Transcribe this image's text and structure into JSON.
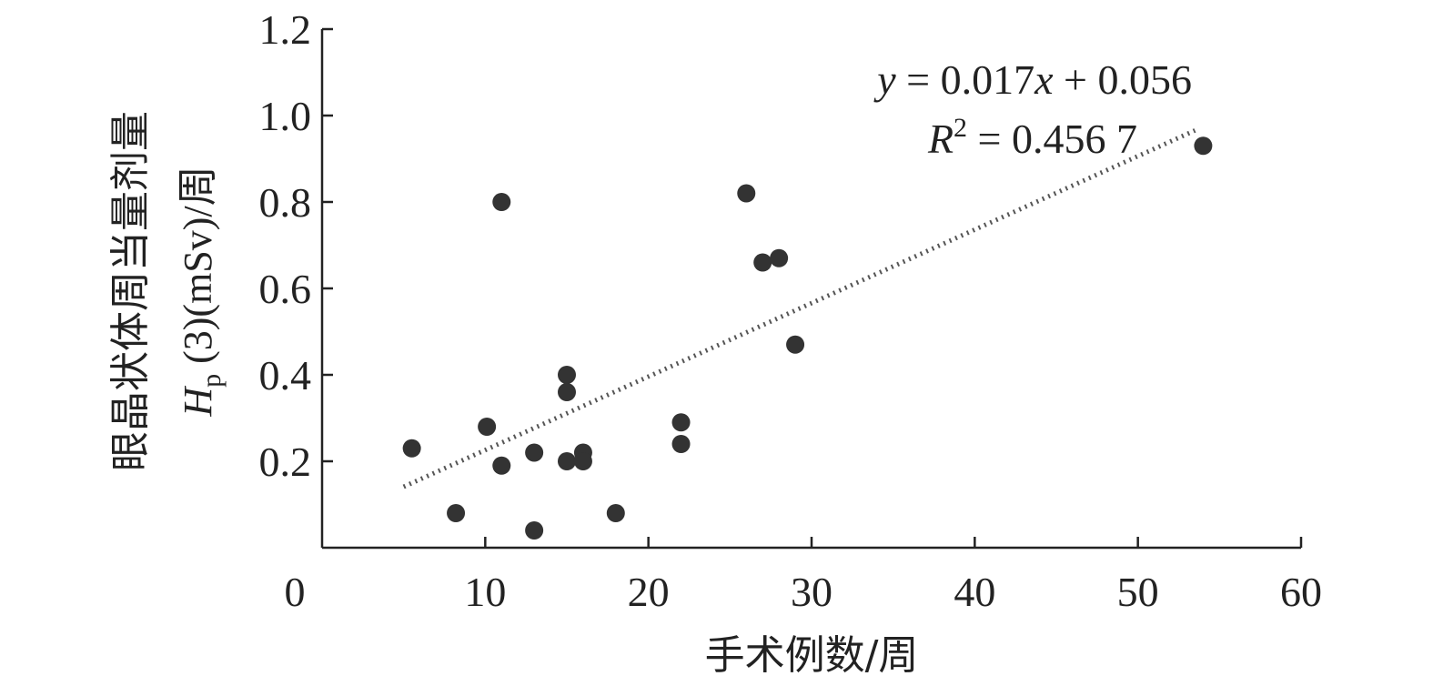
{
  "chart_data": {
    "type": "scatter",
    "xlabel": "手术例数/周",
    "ylabel_line1": "眼晶状体周当量剂量",
    "ylabel_line2": {
      "symbol": "H",
      "subscript": "p",
      "rest": " (3)(mSv)/周"
    },
    "xlim": [
      0,
      60
    ],
    "ylim": [
      0,
      1.2
    ],
    "x_ticks": [
      {
        "value": 0,
        "label": "0"
      },
      {
        "value": 10,
        "label": "10"
      },
      {
        "value": 20,
        "label": "20"
      },
      {
        "value": 30,
        "label": "30"
      },
      {
        "value": 40,
        "label": "40"
      },
      {
        "value": 50,
        "label": "50"
      },
      {
        "value": 60,
        "label": "60"
      }
    ],
    "y_ticks": [
      {
        "value": 0.2,
        "label": "0.2"
      },
      {
        "value": 0.4,
        "label": "0.4"
      },
      {
        "value": 0.6,
        "label": "0.6"
      },
      {
        "value": 0.8,
        "label": "0.8"
      },
      {
        "value": 1.0,
        "label": "1.0"
      },
      {
        "value": 1.2,
        "label": "1.2"
      }
    ],
    "points": [
      {
        "x": 5.5,
        "y": 0.23
      },
      {
        "x": 8.2,
        "y": 0.08
      },
      {
        "x": 10.1,
        "y": 0.28
      },
      {
        "x": 11.0,
        "y": 0.8
      },
      {
        "x": 11.0,
        "y": 0.19
      },
      {
        "x": 13.0,
        "y": 0.22
      },
      {
        "x": 13.0,
        "y": 0.04
      },
      {
        "x": 15.0,
        "y": 0.4
      },
      {
        "x": 15.0,
        "y": 0.36
      },
      {
        "x": 15.0,
        "y": 0.2
      },
      {
        "x": 16.0,
        "y": 0.22
      },
      {
        "x": 16.0,
        "y": 0.2
      },
      {
        "x": 18.0,
        "y": 0.08
      },
      {
        "x": 22.0,
        "y": 0.29
      },
      {
        "x": 22.0,
        "y": 0.24
      },
      {
        "x": 26.0,
        "y": 0.82
      },
      {
        "x": 27.0,
        "y": 0.66
      },
      {
        "x": 28.0,
        "y": 0.67
      },
      {
        "x": 29.0,
        "y": 0.47
      },
      {
        "x": 54.0,
        "y": 0.93
      }
    ],
    "trendline": {
      "slope": 0.017,
      "intercept": 0.056,
      "x_range": [
        5.0,
        53.5
      ],
      "style": "dotted"
    },
    "annotation": {
      "equation": {
        "y": "y",
        "eq": " = 0.017",
        "x": "x",
        "rest": " + 0.056"
      },
      "r2": {
        "r": "R",
        "sup": "2",
        "rest": " = 0.456 7"
      }
    },
    "colors": {
      "point": "#333333",
      "axis": "#222222",
      "trend": "#555555"
    },
    "grid": false,
    "legend": "none"
  }
}
